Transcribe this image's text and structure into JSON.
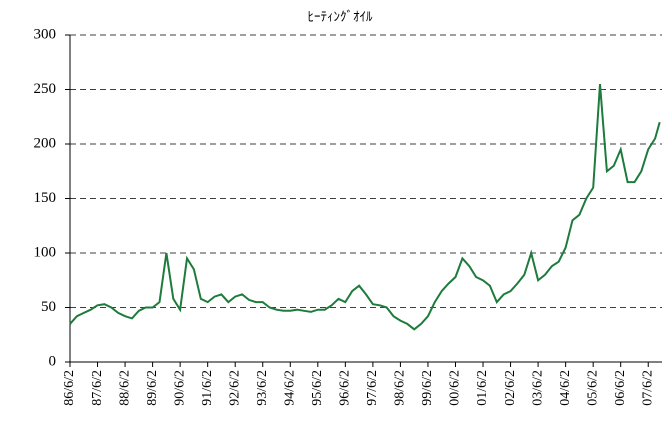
{
  "chart_data": {
    "type": "line",
    "title": "ﾋｰﾃｨﾝｸﾞｵｲﾙ",
    "color": "#1e7b3c",
    "x": [
      "86/6/2",
      "86/9/2",
      "86/12/2",
      "87/3/2",
      "87/6/2",
      "87/9/2",
      "87/12/2",
      "88/3/2",
      "88/6/2",
      "88/9/2",
      "88/12/2",
      "89/3/2",
      "89/6/2",
      "89/9/2",
      "89/12/2",
      "90/3/2",
      "90/6/2",
      "90/9/2",
      "90/12/2",
      "91/3/2",
      "91/6/2",
      "91/9/2",
      "91/12/2",
      "92/3/2",
      "92/6/2",
      "92/9/2",
      "92/12/2",
      "93/3/2",
      "93/6/2",
      "93/9/2",
      "93/12/2",
      "94/3/2",
      "94/6/2",
      "94/9/2",
      "94/12/2",
      "95/3/2",
      "95/6/2",
      "95/9/2",
      "95/12/2",
      "96/3/2",
      "96/6/2",
      "96/9/2",
      "96/12/2",
      "97/3/2",
      "97/6/2",
      "97/9/2",
      "97/12/2",
      "98/3/2",
      "98/6/2",
      "98/9/2",
      "98/12/2",
      "99/3/2",
      "99/6/2",
      "99/9/2",
      "99/12/2",
      "00/3/2",
      "00/6/2",
      "00/9/2",
      "00/12/2",
      "01/3/2",
      "01/6/2",
      "01/9/2",
      "01/12/2",
      "02/3/2",
      "02/6/2",
      "02/9/2",
      "02/12/2",
      "03/3/2",
      "03/6/2",
      "03/9/2",
      "03/12/2",
      "04/3/2",
      "04/6/2",
      "04/9/2",
      "04/12/2",
      "05/3/2",
      "05/6/2",
      "05/9/2",
      "05/12/2",
      "06/3/2",
      "06/6/2",
      "06/9/2",
      "06/12/2",
      "07/3/2",
      "07/6/2",
      "07/9/2",
      "07/11/2"
    ],
    "values": [
      35,
      42,
      45,
      48,
      52,
      53,
      50,
      45,
      42,
      40,
      47,
      50,
      50,
      55,
      100,
      58,
      48,
      95,
      85,
      58,
      55,
      60,
      62,
      55,
      60,
      62,
      57,
      55,
      55,
      50,
      48,
      47,
      47,
      48,
      47,
      46,
      48,
      48,
      52,
      58,
      55,
      65,
      70,
      62,
      53,
      52,
      50,
      42,
      38,
      35,
      30,
      35,
      42,
      55,
      65,
      72,
      78,
      95,
      88,
      78,
      75,
      70,
      55,
      62,
      65,
      72,
      80,
      100,
      75,
      80,
      88,
      92,
      105,
      130,
      135,
      150,
      160,
      255,
      175,
      180,
      195,
      165,
      165,
      175,
      195,
      205,
      220
    ],
    "xlim": [
      "86/6/2",
      "07/12/2"
    ],
    "xticks": [
      "86/6/2",
      "87/6/2",
      "88/6/2",
      "89/6/2",
      "90/6/2",
      "91/6/2",
      "92/6/2",
      "93/6/2",
      "94/6/2",
      "95/6/2",
      "96/6/2",
      "97/6/2",
      "98/6/2",
      "99/6/2",
      "00/6/2",
      "01/6/2",
      "02/6/2",
      "03/6/2",
      "04/6/2",
      "05/6/2",
      "06/6/2",
      "07/6/2"
    ],
    "ylim": [
      0,
      300
    ],
    "yticks": [
      0,
      50,
      100,
      150,
      200,
      250,
      300
    ],
    "grid": true
  }
}
